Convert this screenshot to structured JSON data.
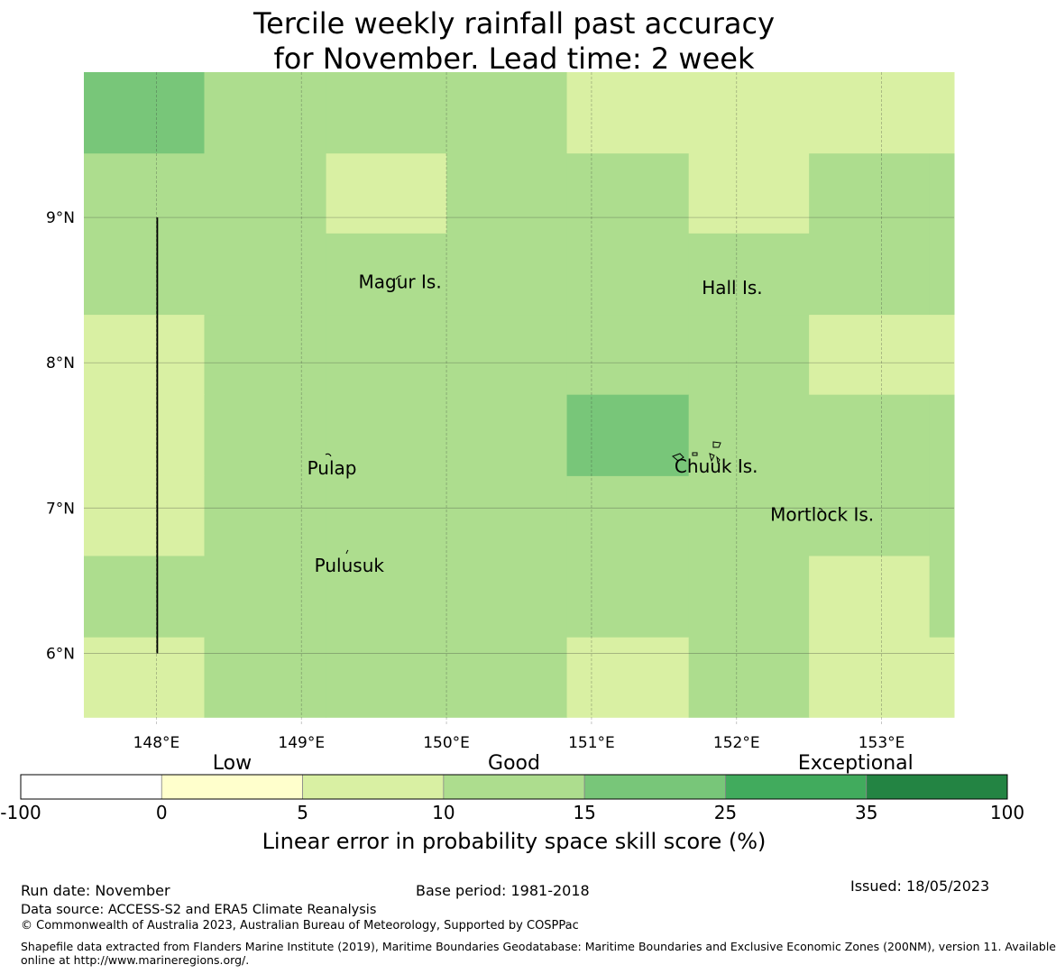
{
  "title": {
    "line1": "Tercile weekly rainfall past accuracy",
    "line2": "for November. Lead time: 2 week"
  },
  "colors": {
    "c0_5": "#d9f0a3",
    "c5_10": "#d9f0a3",
    "c10_15": "#addd8e",
    "c15_25": "#78c679",
    "c25_35": "#41ab5d",
    "c35_100": "#238443"
  },
  "map": {
    "lon_range": [
      147.5,
      153.5
    ],
    "lat_range": [
      5.5,
      10.0
    ],
    "lon_ticks": [
      {
        "value": 148,
        "label": "148°E"
      },
      {
        "value": 149,
        "label": "149°E"
      },
      {
        "value": 150,
        "label": "150°E"
      },
      {
        "value": 151,
        "label": "151°E"
      },
      {
        "value": 152,
        "label": "152°E"
      },
      {
        "value": 153,
        "label": "153°E"
      }
    ],
    "lat_ticks": [
      {
        "value": 9,
        "label": "9°N"
      },
      {
        "value": 8,
        "label": "8°N"
      },
      {
        "value": 7,
        "label": "7°N"
      },
      {
        "value": 6,
        "label": "6°N"
      }
    ],
    "grid_lon_edges": [
      147.5,
      148.33,
      149.17,
      150.0,
      150.83,
      151.67,
      152.5,
      153.33,
      153.5
    ],
    "grid_lat_edges": [
      10.0,
      9.44,
      8.89,
      8.33,
      7.78,
      7.22,
      6.67,
      6.11,
      5.56
    ],
    "grid_classes": [
      [
        "c15_25",
        "c10_15",
        "c10_15",
        "c10_15",
        "c5_10",
        "c5_10",
        "c5_10",
        "c5_10"
      ],
      [
        "c10_15",
        "c10_15",
        "c5_10",
        "c10_15",
        "c10_15",
        "c5_10",
        "c10_15",
        "c10_15"
      ],
      [
        "c10_15",
        "c10_15",
        "c10_15",
        "c10_15",
        "c10_15",
        "c10_15",
        "c10_15",
        "c10_15"
      ],
      [
        "c5_10",
        "c10_15",
        "c10_15",
        "c10_15",
        "c10_15",
        "c10_15",
        "c5_10",
        "c5_10"
      ],
      [
        "c5_10",
        "c10_15",
        "c10_15",
        "c10_15",
        "c15_25",
        "c10_15",
        "c10_15",
        "c10_15"
      ],
      [
        "c5_10",
        "c10_15",
        "c10_15",
        "c10_15",
        "c10_15",
        "c10_15",
        "c10_15",
        "c10_15"
      ],
      [
        "c10_15",
        "c10_15",
        "c10_15",
        "c10_15",
        "c10_15",
        "c10_15",
        "c5_10",
        "c10_15"
      ],
      [
        "c5_10",
        "c10_15",
        "c10_15",
        "c10_15",
        "c5_10",
        "c10_15",
        "c5_10",
        "c5_10"
      ]
    ],
    "places": [
      {
        "name": "Magur Is.",
        "lon": 149.68,
        "lat": 8.55
      },
      {
        "name": "Hall Is.",
        "lon": 151.97,
        "lat": 8.51
      },
      {
        "name": "Pulap",
        "lon": 149.21,
        "lat": 7.27
      },
      {
        "name": "Chuuk Is.",
        "lon": 151.86,
        "lat": 7.28
      },
      {
        "name": "Mortlock Is.",
        "lon": 152.59,
        "lat": 6.95
      },
      {
        "name": "Pulusuk",
        "lon": 149.33,
        "lat": 6.6
      }
    ],
    "boundary_line": {
      "lon": 148.0,
      "lat_from": 9.0,
      "lat_to": 6.0
    }
  },
  "colorbar": {
    "bounds": [
      "-100",
      "0",
      "5",
      "10",
      "15",
      "25",
      "35",
      "100"
    ],
    "segment_colors": [
      "#ffffff",
      "#ffffcc",
      "#d9f0a3",
      "#addd8e",
      "#78c679",
      "#41ab5d",
      "#238443"
    ],
    "categories": [
      "Low",
      "Good",
      "Exceptional"
    ],
    "label": "Linear error in probability space skill score (%)"
  },
  "footer": {
    "run_date": "Run date: November",
    "base_period": "Base period: 1981-2018",
    "issued": "Issued: 18/05/2023",
    "data_source": "Data source: ACCESS-S2 and ERA5 Climate Reanalysis",
    "copyright": "© Commonwealth of Australia 2023, Australian Bureau of Meteorology, Supported by COSPPac",
    "shapefile_line1": "Shapefile data extracted from Flanders Marine Institute (2019), Maritime Boundaries Geodatabase: Maritime Boundaries and Exclusive Economic Zones (200NM), version 11. Available",
    "shapefile_line2": "online at http://www.marineregions.org/."
  }
}
